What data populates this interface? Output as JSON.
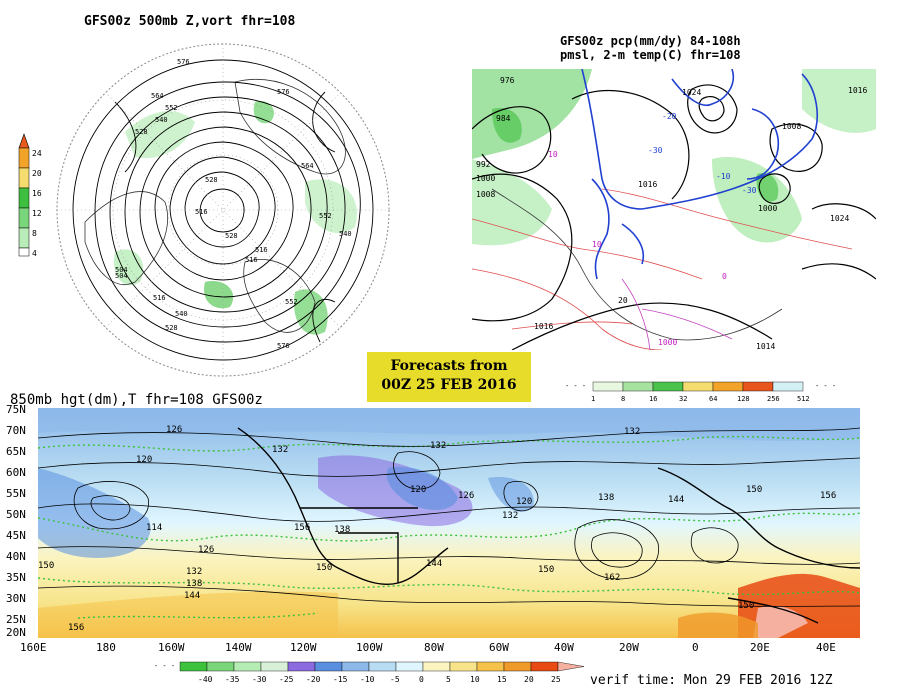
{
  "panel_500mb": {
    "title": "GFS00z  500mb Z,vort   fhr=108",
    "contour_labels": [
      "576",
      "564",
      "552",
      "540",
      "528",
      "516",
      "528",
      "516",
      "504",
      "576",
      "564",
      "552",
      "540",
      "528",
      "516",
      "540",
      "552",
      "564",
      "576",
      "528",
      "504",
      "516"
    ],
    "colorbar": {
      "labels": [
        "24",
        "20",
        "16",
        "12",
        "8",
        "4"
      ],
      "colors": [
        "#e85a1e",
        "#f2a32a",
        "#f5dc6e",
        "#3fbf3f",
        "#7ad67a",
        "#b8ecb8"
      ]
    }
  },
  "panel_pcp": {
    "title_line1": "GFS00z pcp(mm/dy) 84-108h",
    "title_line2": "pmsl, 2-m temp(C)  fhr=108",
    "labels": [
      "976",
      "984",
      "992",
      "1000",
      "1008",
      "1016",
      "1024",
      "1000",
      "1008",
      "1016",
      "1024",
      "-20",
      "-30",
      "-10",
      "10",
      "-30",
      "10",
      "0",
      "1016",
      "1014",
      "20",
      "1000"
    ],
    "colorbar": {
      "labels": [
        "1",
        "8",
        "16",
        "32",
        "64",
        "128",
        "256",
        "512"
      ],
      "colors": [
        "#e8f8e0",
        "#a6e3a0",
        "#4bc24b",
        "#f5dc6e",
        "#f2a32a",
        "#e8561e",
        "#d3f1f5"
      ]
    }
  },
  "banner": {
    "line1": "Forecasts from",
    "line2": "00Z 25 FEB 2016"
  },
  "panel_850mb": {
    "title": "850mb hgt(dm),T   fhr=108 GFS00z",
    "lat_labels": [
      "75N",
      "70N",
      "65N",
      "60N",
      "55N",
      "50N",
      "45N",
      "40N",
      "35N",
      "30N",
      "25N",
      "20N"
    ],
    "lon_labels": [
      "160E",
      "180",
      "160W",
      "140W",
      "120W",
      "100W",
      "80W",
      "60W",
      "40W",
      "20W",
      "0",
      "20E",
      "40E"
    ],
    "height_labels": [
      "126",
      "132",
      "132",
      "120",
      "126",
      "120",
      "132",
      "132",
      "138",
      "144",
      "150",
      "156",
      "114",
      "120",
      "126",
      "132",
      "138",
      "144",
      "150",
      "156",
      "162",
      "150",
      "150",
      "138",
      "144",
      "150",
      "156"
    ],
    "colorbar": {
      "labels": [
        "-40",
        "-35",
        "-30",
        "-25",
        "-20",
        "-15",
        "-10",
        "-5",
        "0",
        "5",
        "10",
        "15",
        "20",
        "25"
      ],
      "colors": [
        "#3cc23c",
        "#7ad67a",
        "#b4ecb4",
        "#d7f0d7",
        "#8c6ae0",
        "#5a8fe0",
        "#8cb8ea",
        "#b8dcf2",
        "#e0f6ff",
        "#fbf4c0",
        "#f7e48a",
        "#f5c24a",
        "#f09a2a",
        "#e84a14",
        "#f5b0a0"
      ]
    }
  },
  "verif_time": "verif time: Mon 29 FEB 2016 12Z"
}
